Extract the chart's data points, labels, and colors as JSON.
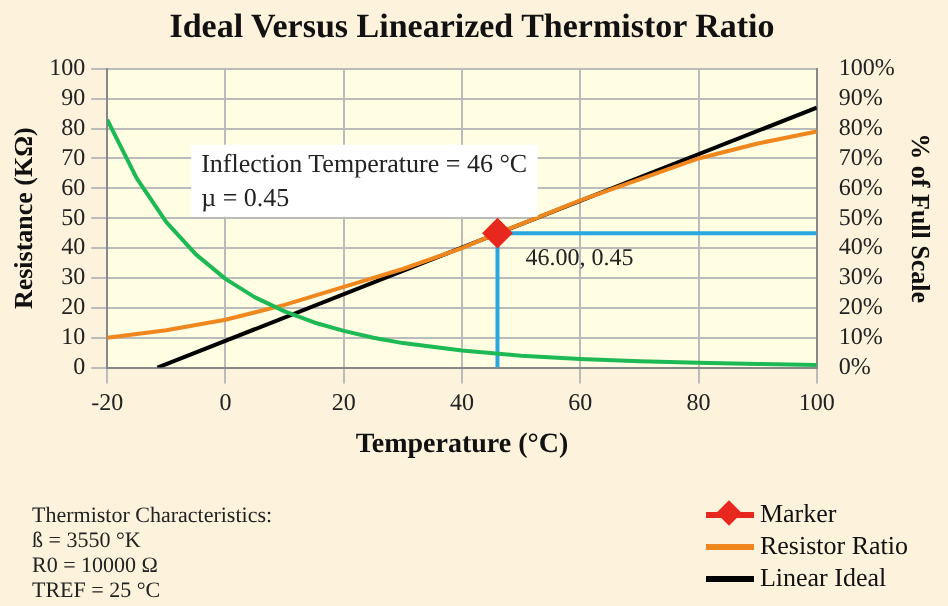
{
  "chart_data": {
    "type": "line",
    "title": "Ideal Versus Linearized Thermistor Ratio",
    "xlabel": "Temperature (°C)",
    "ylabel": "Resistance (KΩ)",
    "y2label": "% of Full Scale",
    "xlim": [
      -20,
      100
    ],
    "xticks": [
      -20,
      0,
      20,
      40,
      60,
      80,
      100
    ],
    "ylim": [
      0,
      100
    ],
    "yticks": [
      0,
      10,
      20,
      30,
      40,
      50,
      60,
      70,
      80,
      90,
      100
    ],
    "y2lim": [
      0,
      100
    ],
    "y2ticks": [
      {
        "value": 0,
        "label": "0%"
      },
      {
        "value": 10,
        "label": "10%"
      },
      {
        "value": 20,
        "label": "20%"
      },
      {
        "value": 30,
        "label": "30%"
      },
      {
        "value": 40,
        "label": "40%"
      },
      {
        "value": 50,
        "label": "50%"
      },
      {
        "value": 60,
        "label": "60%"
      },
      {
        "value": 70,
        "label": "70%"
      },
      {
        "value": 80,
        "label": "80%"
      },
      {
        "value": 90,
        "label": "90%"
      },
      {
        "value": 100,
        "label": "100%"
      }
    ],
    "grid": true,
    "legend": "bottom right",
    "marker": "none",
    "series": [
      {
        "type": "line",
        "color": "#1db954",
        "x": [
          -20,
          -15,
          -10,
          -5,
          0,
          5,
          10,
          15,
          20,
          25,
          30,
          40,
          50,
          60,
          70,
          80,
          90,
          100
        ],
        "values": [
          83,
          63.3,
          48.7,
          37.9,
          29.7,
          23.5,
          18.8,
          15.1,
          12.3,
          10,
          8.2,
          5.7,
          4,
          2.9,
          2.1,
          1.6,
          1.2,
          0.9
        ]
      },
      {
        "type": "scatter",
        "name": "Marker",
        "color": "#e8281e",
        "axis": "y2",
        "marker": "diamond",
        "x": [
          46
        ],
        "values": [
          45
        ]
      },
      {
        "type": "line",
        "name": "Resistor Ratio",
        "color": "#f0871e",
        "axis": "y2",
        "x": [
          -20,
          -10,
          0,
          10,
          20,
          30,
          40,
          46,
          50,
          60,
          70,
          80,
          90,
          100
        ],
        "values": [
          10,
          12.5,
          16,
          21,
          27,
          33,
          40,
          45,
          48,
          56,
          63,
          70,
          75,
          79
        ]
      },
      {
        "type": "line",
        "name": "Linear Ideal",
        "color": "#000000",
        "axis": "y2",
        "x": [
          -11.5,
          100
        ],
        "values": [
          0,
          87
        ]
      },
      {
        "type": "line",
        "color": "#29a8e0",
        "axis": "y2",
        "x": [
          46,
          46,
          100
        ],
        "values": [
          0,
          45,
          45
        ]
      }
    ],
    "annotations": [
      "Inflection Temperature = 46 °C",
      "µ = 0.45",
      "46.00, 0.45",
      "Thermistor Characteristics:",
      "ß = 3550 °K",
      "R0 = 10000 Ω",
      "TREF = 25 °C"
    ]
  }
}
